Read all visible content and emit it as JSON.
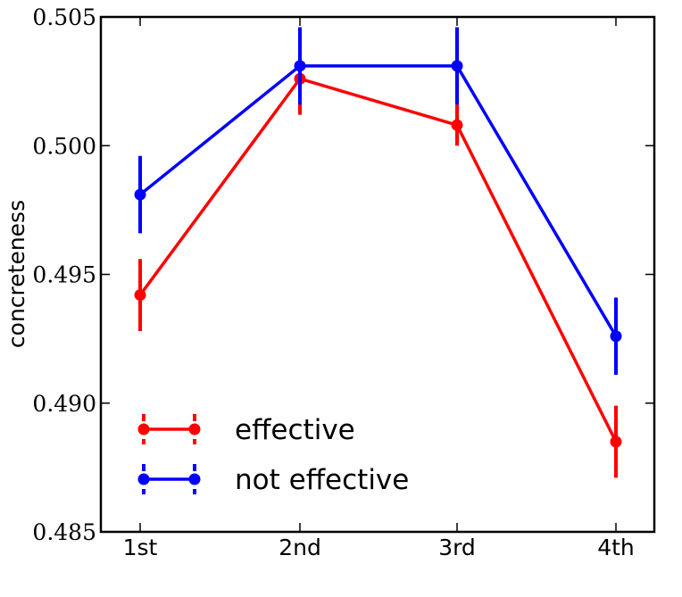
{
  "chart_data": {
    "type": "line",
    "title": "",
    "xlabel": "",
    "ylabel": "concreteness",
    "categories": [
      "1st",
      "2nd",
      "3rd",
      "4th"
    ],
    "ylim": [
      0.485,
      0.505
    ],
    "yticks": [
      "0.485",
      "0.490",
      "0.495",
      "0.500",
      "0.505"
    ],
    "ytick_values": [
      0.485,
      0.49,
      0.495,
      0.5,
      0.505
    ],
    "grid": false,
    "legend_position": "lower-left",
    "series": [
      {
        "name": "effective",
        "color": "#ff0000",
        "values": [
          0.4942,
          0.5026,
          0.5008,
          0.4885
        ],
        "err": [
          0.0014,
          0.0014,
          0.0008,
          0.0014
        ]
      },
      {
        "name": "not effective",
        "color": "#0000ff",
        "values": [
          0.4981,
          0.5031,
          0.5031,
          0.4926
        ],
        "err": [
          0.0015,
          0.0015,
          0.0015,
          0.0015
        ]
      }
    ]
  }
}
